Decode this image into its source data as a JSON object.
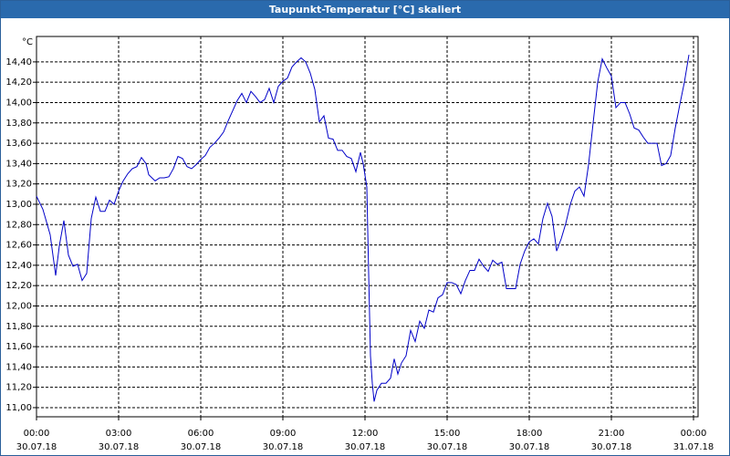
{
  "chart_data": {
    "type": "line",
    "title": "Taupunkt-Temperatur [°C] skaliert",
    "y_unit": "°C",
    "x": [
      0,
      14,
      30,
      42,
      50,
      60,
      70,
      80,
      90,
      100,
      110,
      120,
      130,
      140,
      150,
      160,
      170,
      180,
      190,
      200,
      210,
      220,
      230,
      240,
      246,
      260,
      270,
      280,
      290,
      300,
      310,
      320,
      330,
      340,
      350,
      360,
      370,
      380,
      390,
      400,
      410,
      420,
      430,
      440,
      450,
      460,
      470,
      480,
      490,
      500,
      510,
      520,
      530,
      540,
      550,
      560,
      570,
      580,
      590,
      600,
      610,
      620,
      630,
      640,
      650,
      660,
      670,
      680,
      690,
      700,
      710,
      716,
      724,
      728,
      732,
      736,
      740,
      746,
      756,
      766,
      776,
      784,
      792,
      800,
      810,
      820,
      830,
      840,
      850,
      860,
      870,
      880,
      890,
      900,
      910,
      920,
      930,
      940,
      950,
      960,
      970,
      980,
      990,
      1000,
      1010,
      1020,
      1030,
      1040,
      1050,
      1060,
      1070,
      1080,
      1090,
      1100,
      1110,
      1120,
      1130,
      1140,
      1150,
      1160,
      1170,
      1180,
      1190,
      1200,
      1210,
      1220,
      1230,
      1240,
      1250,
      1260,
      1270,
      1280,
      1290,
      1300,
      1310,
      1320,
      1330,
      1340,
      1350,
      1360,
      1370,
      1380,
      1390,
      1400,
      1410,
      1420,
      1430
    ],
    "series": [
      {
        "name": "Taupunkt-Temperatur",
        "color": "#0000c8",
        "values": [
          13.08,
          12.95,
          12.7,
          12.3,
          12.59,
          12.84,
          12.5,
          12.39,
          12.41,
          12.25,
          12.32,
          12.86,
          13.07,
          12.93,
          12.93,
          13.04,
          13.0,
          13.13,
          13.23,
          13.3,
          13.35,
          13.37,
          13.46,
          13.4,
          13.29,
          13.23,
          13.26,
          13.26,
          13.27,
          13.35,
          13.47,
          13.45,
          13.37,
          13.35,
          13.39,
          13.44,
          13.48,
          13.56,
          13.6,
          13.65,
          13.71,
          13.82,
          13.92,
          14.02,
          14.09,
          14.0,
          14.11,
          14.06,
          14.0,
          14.03,
          14.14,
          14.0,
          14.16,
          14.21,
          14.24,
          14.35,
          14.4,
          14.44,
          14.4,
          14.29,
          14.13,
          13.81,
          13.87,
          13.65,
          13.64,
          13.53,
          13.53,
          13.47,
          13.45,
          13.32,
          13.51,
          13.4,
          13.17,
          12.32,
          11.51,
          11.24,
          11.06,
          11.17,
          11.24,
          11.24,
          11.29,
          11.48,
          11.33,
          11.44,
          11.51,
          11.76,
          11.65,
          11.85,
          11.78,
          11.96,
          11.94,
          12.08,
          12.11,
          12.23,
          12.23,
          12.21,
          12.12,
          12.25,
          12.35,
          12.35,
          12.46,
          12.39,
          12.34,
          12.45,
          12.41,
          12.43,
          12.17,
          12.17,
          12.17,
          12.41,
          12.54,
          12.63,
          12.66,
          12.61,
          12.86,
          13.01,
          12.88,
          12.54,
          12.66,
          12.81,
          13.0,
          13.13,
          13.17,
          13.08,
          13.39,
          13.8,
          14.2,
          14.43,
          14.34,
          14.26,
          13.95,
          14.0,
          14.0,
          13.89,
          13.75,
          13.73,
          13.66,
          13.6,
          13.6,
          13.6,
          13.38,
          13.4,
          13.48,
          13.75,
          13.98,
          14.2,
          14.47
        ]
      }
    ],
    "xlim": [
      0,
      1450
    ],
    "xticks": [
      {
        "value": 0,
        "label": "00:00",
        "date": "30.07.18"
      },
      {
        "value": 180,
        "label": "03:00",
        "date": "30.07.18"
      },
      {
        "value": 360,
        "label": "06:00",
        "date": "30.07.18"
      },
      {
        "value": 540,
        "label": "09:00",
        "date": "30.07.18"
      },
      {
        "value": 720,
        "label": "12:00",
        "date": "30.07.18"
      },
      {
        "value": 900,
        "label": "15:00",
        "date": "30.07.18"
      },
      {
        "value": 1080,
        "label": "18:00",
        "date": "30.07.18"
      },
      {
        "value": 1260,
        "label": "21:00",
        "date": "30.07.18"
      },
      {
        "value": 1440,
        "label": "00:00",
        "date": "31.07.18"
      }
    ],
    "ylim": [
      10.91,
      14.65
    ],
    "yticks": [
      {
        "value": 11.0,
        "label": "11,00"
      },
      {
        "value": 11.2,
        "label": "11,20"
      },
      {
        "value": 11.4,
        "label": "11,40"
      },
      {
        "value": 11.6,
        "label": "11,60"
      },
      {
        "value": 11.8,
        "label": "11,80"
      },
      {
        "value": 12.0,
        "label": "12,00"
      },
      {
        "value": 12.2,
        "label": "12,20"
      },
      {
        "value": 12.4,
        "label": "12,40"
      },
      {
        "value": 12.6,
        "label": "12,60"
      },
      {
        "value": 12.8,
        "label": "12,80"
      },
      {
        "value": 13.0,
        "label": "13,00"
      },
      {
        "value": 13.2,
        "label": "13,20"
      },
      {
        "value": 13.4,
        "label": "13,40"
      },
      {
        "value": 13.6,
        "label": "13,60"
      },
      {
        "value": 13.8,
        "label": "13,80"
      },
      {
        "value": 14.0,
        "label": "14,00"
      },
      {
        "value": 14.2,
        "label": "14,20"
      },
      {
        "value": 14.4,
        "label": "14,40"
      }
    ],
    "grid": true
  }
}
